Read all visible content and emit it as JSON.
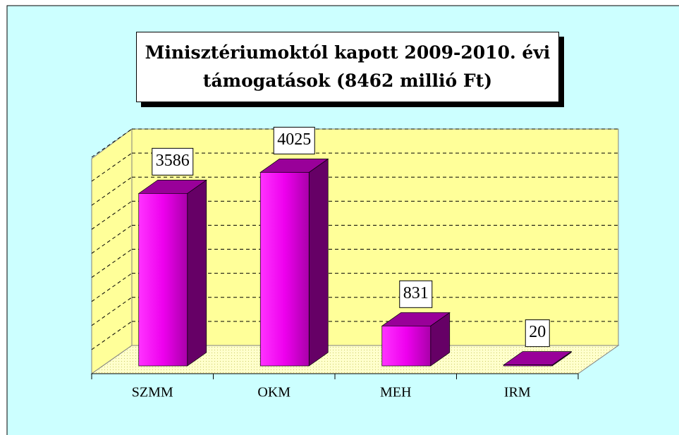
{
  "chart_data": {
    "type": "bar3d",
    "title": "Minisztériumoktól kapott 2009-2010. évi támogatások (8462 millió Ft)",
    "categories": [
      "SZMM",
      "OKM",
      "MEH",
      "IRM"
    ],
    "values": [
      3586,
      4025,
      831,
      20
    ],
    "color": "#ff00ff",
    "ylim": [
      0,
      4500
    ],
    "yticks": [
      0,
      500,
      1000,
      1500,
      2000,
      2500,
      3000,
      3500,
      4000,
      4500
    ],
    "grid": true
  }
}
